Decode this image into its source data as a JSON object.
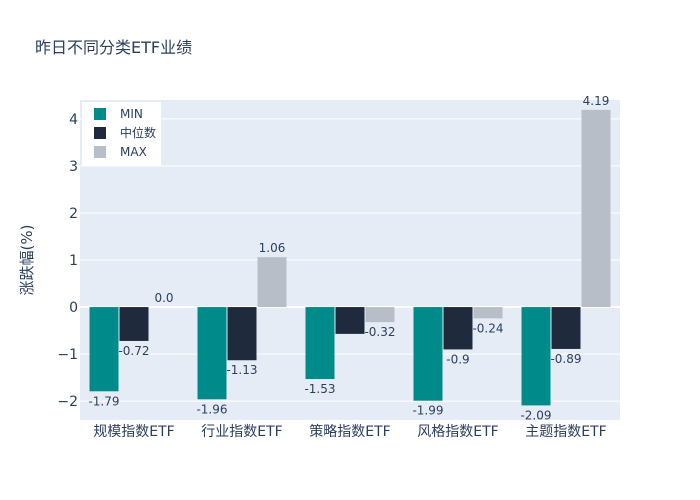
{
  "chart_data": {
    "type": "bar",
    "title": "昨日不同分类ETF业绩",
    "xlabel": "",
    "ylabel": "涨跌幅(%)",
    "ylim": [
      -2.4,
      4.4
    ],
    "yticks": [
      -2,
      -1,
      0,
      1,
      2,
      3,
      4
    ],
    "ytick_labels": [
      "−2",
      "−1",
      "0",
      "1",
      "2",
      "3",
      "4"
    ],
    "legend_position": "top-left",
    "grid": true,
    "categories": [
      "规模指数ETF",
      "行业指数ETF",
      "策略指数ETF",
      "风格指数ETF",
      "主题指数ETF"
    ],
    "series": [
      {
        "name": "MIN",
        "color": "#008b8b",
        "values": [
          -1.79,
          -1.96,
          -1.53,
          -1.99,
          -2.09
        ],
        "labels": [
          "-1.79",
          "-1.96",
          "-1.53",
          "-1.99",
          "-2.09"
        ]
      },
      {
        "name": "中位数",
        "color": "#1f2a3c",
        "values": [
          -0.72,
          -1.13,
          -0.57,
          -0.9,
          -0.89
        ],
        "labels": [
          "-0.72",
          "-1.13",
          "",
          "-0.9",
          "-0.89"
        ]
      },
      {
        "name": "MAX",
        "color": "#b7bec7",
        "values": [
          0.0,
          1.06,
          -0.32,
          -0.24,
          4.19
        ],
        "labels": [
          "0.0",
          "1.06",
          "-0.32",
          "-0.24",
          "4.19"
        ]
      }
    ]
  }
}
